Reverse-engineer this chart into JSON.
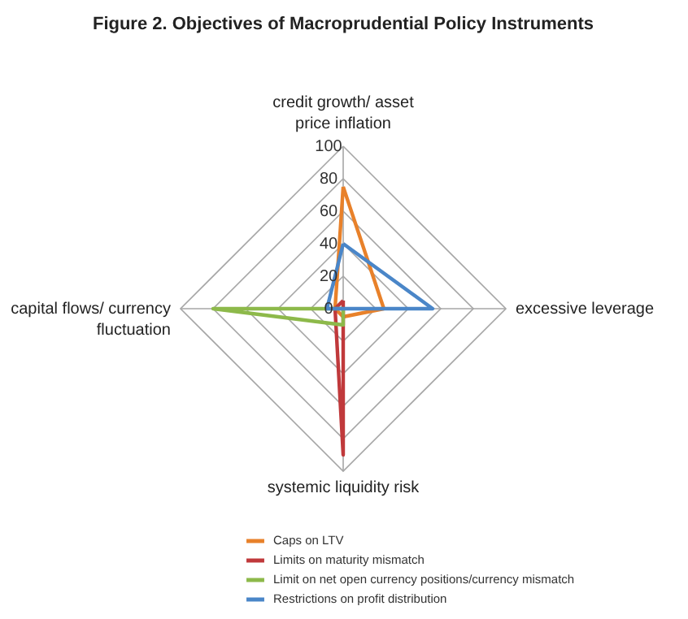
{
  "chart_data": {
    "type": "radar",
    "title": "Figure 2. Objectives of Macroprudential Policy Instruments",
    "categories": [
      "credit growth/ asset price inflation",
      "excessive leverage",
      "systemic liquidity risk",
      "capital flows/ currency fluctuation"
    ],
    "series": [
      {
        "name": "Caps on LTV",
        "color": "#e8812a",
        "values": [
          75,
          25,
          5,
          5
        ]
      },
      {
        "name": "Limits on maturity mismatch",
        "color": "#c0393b",
        "values": [
          5,
          0,
          90,
          5
        ]
      },
      {
        "name": "Limit on net open currency positions/currency mismatch",
        "color": "#8db94a",
        "values": [
          0,
          0,
          10,
          80
        ]
      },
      {
        "name": "Restrictions on profit distribution",
        "color": "#4a86c8",
        "values": [
          40,
          55,
          0,
          10
        ]
      }
    ],
    "ylim": [
      0,
      100
    ],
    "yticks": [
      0,
      20,
      40,
      60,
      80,
      100
    ],
    "grid": true,
    "legend": "bottom"
  }
}
